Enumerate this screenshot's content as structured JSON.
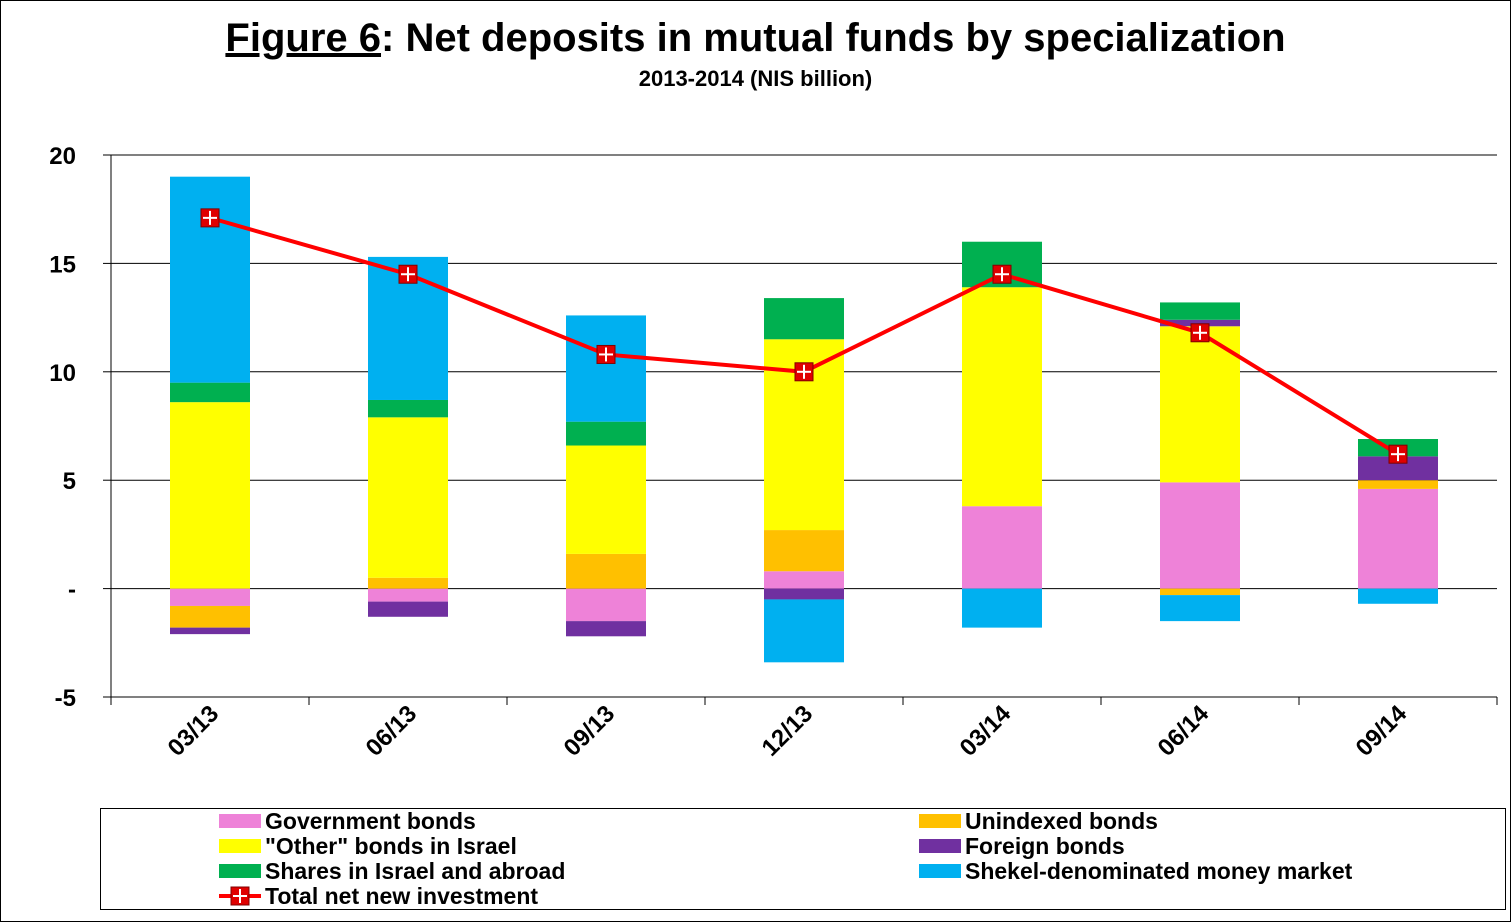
{
  "title_prefix": "Figure 6",
  "title_rest": ": Net deposits in mutual funds by specialization",
  "subtitle": "2013-2014 (NIS billion)",
  "chart_data": {
    "type": "bar",
    "stacked": true,
    "categories": [
      "03/13",
      "06/13",
      "09/13",
      "12/13",
      "03/14",
      "06/14",
      "09/14"
    ],
    "ylim": [
      -5,
      20
    ],
    "yticks": [
      {
        "value": -5,
        "label": "-5"
      },
      {
        "value": 0,
        "label": "-"
      },
      {
        "value": 5,
        "label": "5"
      },
      {
        "value": 10,
        "label": "10"
      },
      {
        "value": 15,
        "label": "15"
      },
      {
        "value": 20,
        "label": "20"
      }
    ],
    "grid": true,
    "series": [
      {
        "name": "Government bonds",
        "color": "#EE82D8",
        "values": [
          -0.8,
          -0.6,
          -1.5,
          0.8,
          3.8,
          4.9,
          4.6
        ]
      },
      {
        "name": "Unindexed bonds",
        "color": "#FFC000",
        "values": [
          -1.0,
          0.5,
          1.6,
          1.9,
          0.0,
          -0.3,
          0.4
        ]
      },
      {
        "name": "\"Other\" bonds in Israel",
        "color": "#FFFF00",
        "values": [
          8.6,
          7.4,
          5.0,
          8.8,
          10.1,
          7.2,
          0.0
        ]
      },
      {
        "name": "Foreign bonds",
        "color": "#7030A0",
        "values": [
          -0.3,
          -0.7,
          -0.7,
          -0.5,
          0.0,
          0.3,
          1.1
        ]
      },
      {
        "name": "Shares in Israel and abroad",
        "color": "#00B050",
        "values": [
          0.9,
          0.8,
          1.1,
          1.9,
          2.1,
          0.8,
          0.8
        ]
      },
      {
        "name": "Shekel-denominated money market",
        "color": "#00B0F0",
        "values": [
          9.5,
          6.6,
          4.9,
          -2.9,
          -1.8,
          -1.2,
          -0.7
        ]
      }
    ],
    "line": {
      "name": "Total net new investment",
      "color": "#FF0000",
      "marker_color": "#E00000",
      "values": [
        17.1,
        14.5,
        10.8,
        10.0,
        14.5,
        11.8,
        6.2
      ]
    },
    "legend_position": "bottom"
  }
}
